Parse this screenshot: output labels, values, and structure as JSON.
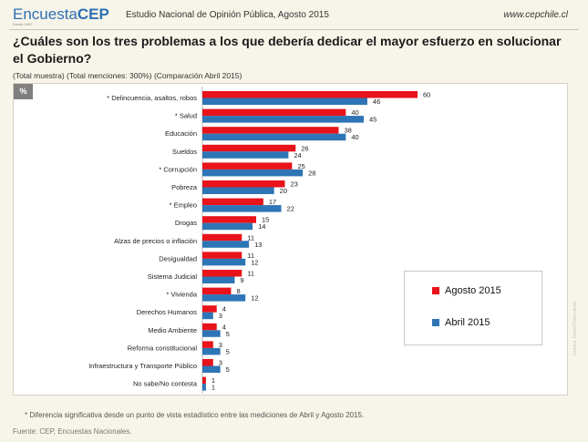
{
  "header": {
    "logo_light": "Encuesta",
    "logo_bold": "CEP",
    "logo_sub": "Desde 1987",
    "study": "Estudio Nacional de Opinión Pública, Agosto 2015",
    "site": "www.cepchile.cl"
  },
  "question": "¿Cuáles son los tres problemas a los que debería dedicar el mayor esfuerzo en solucionar el Gobierno?",
  "subtitle": "(Total muestra) (Total menciones: 300%) (Comparación Abril 2015)",
  "badge": "%",
  "footnote": "* Diferencia significativa desde un punto de vista estadístico entre las mediciones de Abril y Agosto 2015.",
  "source": "Fuente: CEP, Encuestas Nacionales.",
  "credit": "Gráfica: David Flores Arias",
  "colors": {
    "agosto": "#e8131b",
    "abril": "#2e75b6"
  },
  "chart_data": {
    "type": "bar",
    "orientation": "horizontal",
    "categories": [
      "* Delincuencia, asaltos, robos",
      "* Salud",
      "Educación",
      "Sueldos",
      "* Corrupción",
      "Pobreza",
      "* Empleo",
      "Drogas",
      "Alzas de precios o inflación",
      "Desigualdad",
      "Sistema Judicial",
      "* Vivienda",
      "Derechos Humanos",
      "Medio Ambiente",
      "Reforma constitucional",
      "Infraestructura y Transporte Público",
      "No sabe/No contesta"
    ],
    "series": [
      {
        "name": "Agosto 2015",
        "values": [
          60,
          40,
          38,
          26,
          25,
          23,
          17,
          15,
          11,
          11,
          11,
          8,
          4,
          4,
          3,
          3,
          1
        ]
      },
      {
        "name": "Abril 2015",
        "values": [
          46,
          45,
          40,
          24,
          28,
          20,
          22,
          14,
          13,
          12,
          9,
          12,
          3,
          5,
          5,
          5,
          1
        ]
      }
    ],
    "xlim": [
      0,
      70
    ],
    "legend": "right"
  }
}
